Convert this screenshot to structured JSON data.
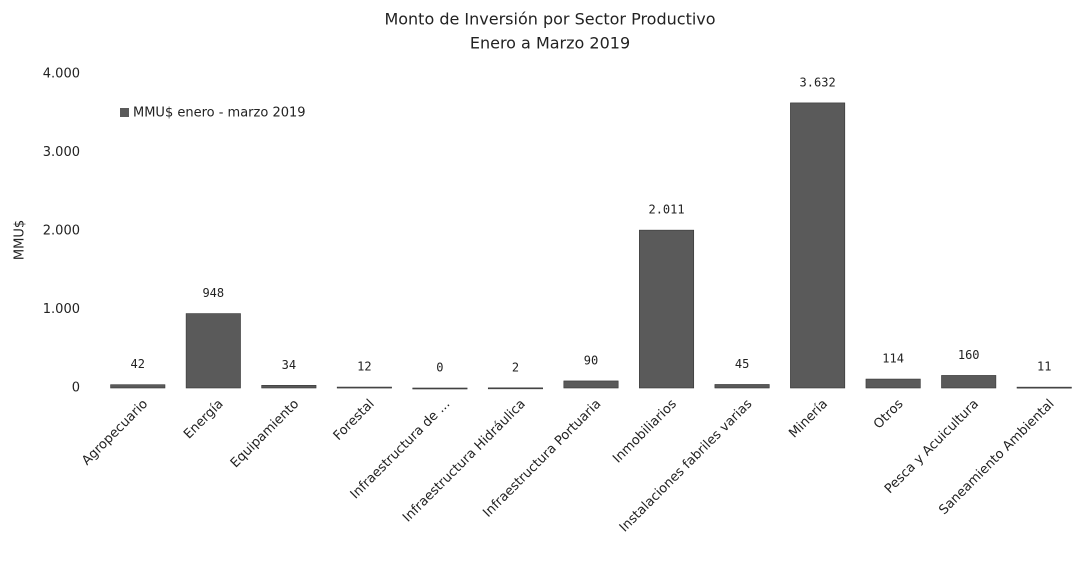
{
  "chart_data": {
    "type": "bar",
    "title": "Monto de Inversión por Sector Productivo",
    "subtitle": "Enero a Marzo 2019",
    "ylabel": "MMU$",
    "categories": [
      "Agropecuario",
      "Energía",
      "Equipamiento",
      "Forestal",
      "Infraestructura de ...",
      "Infraestructura Hidráulica",
      "Infraestructura Portuaria",
      "Inmobiliarios",
      "Instalaciones fabriles varias",
      "Minería",
      "Otros",
      "Pesca y Acuicultura",
      "Saneamiento Ambiental"
    ],
    "series": [
      {
        "name": "MMU$ enero - marzo 2019",
        "color": "#5a5a5a",
        "values": [
          42,
          948,
          34,
          12,
          0,
          2,
          90,
          2011,
          45,
          3632,
          114,
          160,
          11
        ],
        "value_labels": [
          "42",
          "948",
          "34",
          "12",
          "0",
          "2",
          "90",
          "2.011",
          "45",
          "3.632",
          "114",
          "160",
          "11"
        ]
      }
    ],
    "ylim": [
      0,
      4000
    ],
    "yticks": [
      0,
      {
        "value": 1000,
        "label": "1.000"
      },
      {
        "value": 2000,
        "label": "2.000"
      },
      {
        "value": 3000,
        "label": "3.000"
      },
      {
        "value": 4000,
        "label": "4.000"
      }
    ],
    "grid": false,
    "legend": "top-left"
  }
}
